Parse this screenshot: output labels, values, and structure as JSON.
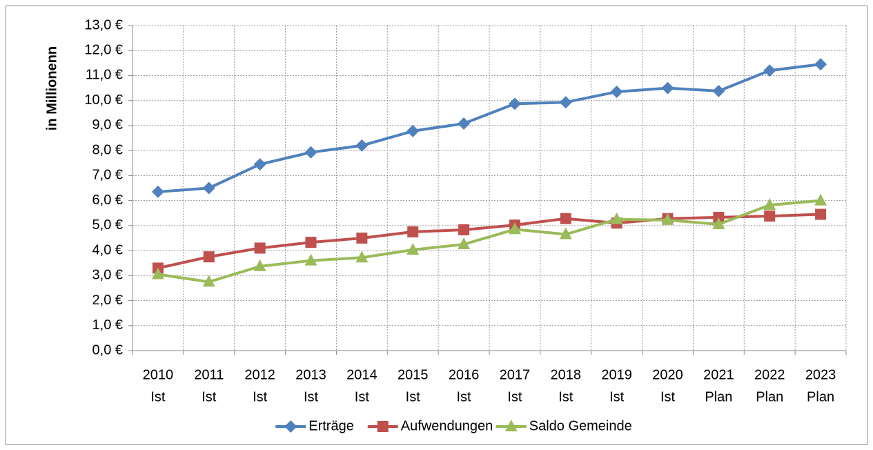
{
  "chart_data": {
    "type": "line",
    "y_label": "in Millionenn",
    "categories": [
      [
        "2010",
        "Ist"
      ],
      [
        "2011",
        "Ist"
      ],
      [
        "2012",
        "Ist"
      ],
      [
        "2013",
        "Ist"
      ],
      [
        "2014",
        "Ist"
      ],
      [
        "2015",
        "Ist"
      ],
      [
        "2016",
        "Ist"
      ],
      [
        "2017",
        "Ist"
      ],
      [
        "2018",
        "Ist"
      ],
      [
        "2019",
        "Ist"
      ],
      [
        "2020",
        "Ist"
      ],
      [
        "2021",
        "Plan"
      ],
      [
        "2022",
        "Plan"
      ],
      [
        "2023",
        "Plan"
      ]
    ],
    "series": [
      {
        "name": "Erträge",
        "color": "#4F81BD",
        "marker": "diamond",
        "values": [
          6.35,
          6.5,
          7.45,
          7.93,
          8.2,
          8.78,
          9.08,
          9.87,
          9.93,
          10.35,
          10.5,
          10.38,
          11.2,
          11.45
        ]
      },
      {
        "name": "Aufwendungen",
        "color": "#C0504D",
        "marker": "square",
        "values": [
          3.3,
          3.75,
          4.1,
          4.33,
          4.5,
          4.75,
          4.83,
          5.02,
          5.28,
          5.1,
          5.28,
          5.33,
          5.38,
          5.45
        ]
      },
      {
        "name": "Saldo Gemeinde",
        "color": "#9BBB59",
        "marker": "triangle",
        "values": [
          3.05,
          2.75,
          3.37,
          3.6,
          3.72,
          4.03,
          4.25,
          4.85,
          4.65,
          5.25,
          5.22,
          5.05,
          5.82,
          6.0
        ]
      }
    ],
    "ylim": [
      0,
      13
    ],
    "yticks": [
      {
        "value": 0,
        "label": "0,0 €"
      },
      {
        "value": 1,
        "label": "1,0 €"
      },
      {
        "value": 2,
        "label": "2,0 €"
      },
      {
        "value": 3,
        "label": "3,0 €"
      },
      {
        "value": 4,
        "label": "4,0 €"
      },
      {
        "value": 5,
        "label": "5,0 €"
      },
      {
        "value": 6,
        "label": "6,0 €"
      },
      {
        "value": 7,
        "label": "7,0 €"
      },
      {
        "value": 8,
        "label": "8,0 €"
      },
      {
        "value": 9,
        "label": "9,0 €"
      },
      {
        "value": 10,
        "label": "10,0 €"
      },
      {
        "value": 11,
        "label": "11,0 €"
      },
      {
        "value": 12,
        "label": "12,0 €"
      },
      {
        "value": 13,
        "label": "13,0 €"
      }
    ],
    "grid": true,
    "legend": "bottom"
  }
}
